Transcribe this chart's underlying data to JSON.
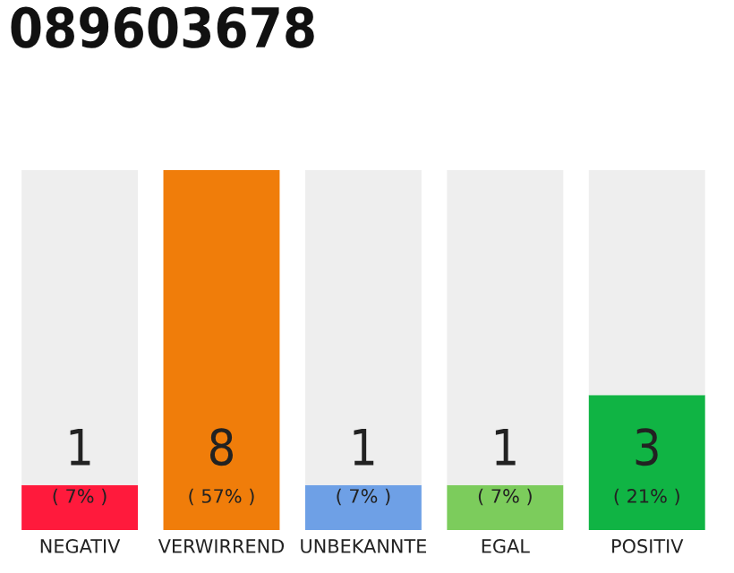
{
  "chart_data": {
    "type": "bar",
    "title": "089603678",
    "categories": [
      "NEGATIV",
      "VERWIRREND",
      "UNBEKANNTE",
      "EGAL",
      "POSITIV"
    ],
    "stacked": true,
    "ylim": [
      0,
      8
    ],
    "tick_labels": "x",
    "grid": false,
    "legend": false,
    "series": [
      {
        "colors": [
          "#ff1a3c",
          "#f07d0a",
          "#6ea0e6",
          "#7ccc5c",
          "#10b444"
        ],
        "values": [
          1,
          8,
          1,
          1,
          3
        ],
        "value_labels": [
          "1\n( 7% )",
          "8\n( 57% )",
          "1\n( 7% )",
          "1\n( 7% )",
          "3\n( 21% )"
        ]
      },
      {
        "color": "#eeeeee",
        "values": [
          7,
          0,
          7,
          7,
          5
        ]
      }
    ]
  }
}
